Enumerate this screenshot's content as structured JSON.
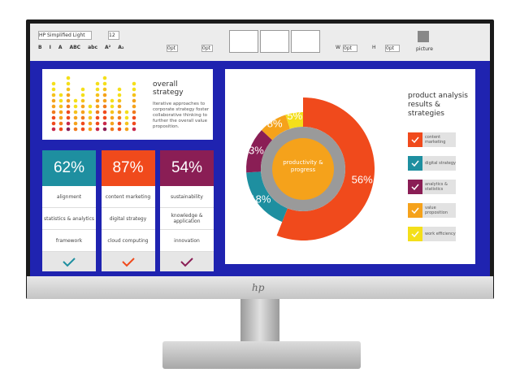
{
  "toolbar": {
    "font": "HP Simplified Light",
    "size": "12",
    "buttons": [
      "B",
      "I",
      "A",
      "ABC",
      "abc",
      "A²",
      "A₂"
    ],
    "spacing": [
      "0pt",
      "0pt"
    ],
    "dims": [
      "W",
      "0pt",
      "H",
      "0pt"
    ],
    "picture": "picture"
  },
  "strategy": {
    "title": "overall strategy",
    "body": "Iterative approaches to corporate strategy foster collaborative thinking to further the overall value proposition."
  },
  "cards": [
    {
      "label": "62%",
      "items": [
        "alignment",
        "statistics & analytics",
        "framework"
      ]
    },
    {
      "label": "87%",
      "items": [
        "content marketing",
        "digital strategy",
        "cloud computing"
      ]
    },
    {
      "label": "54%",
      "items": [
        "sustainability",
        "knowledge & application",
        "innovation"
      ]
    }
  ],
  "chart_data": {
    "type": "donut",
    "title": "product analysis results & strategies",
    "center_label": "productivity & progress",
    "categories": [
      "content marketing",
      "digital strategy",
      "analytics & statistics",
      "value proposition",
      "work efficiency"
    ],
    "values": [
      56,
      18,
      13,
      8,
      5
    ],
    "value_labels": [
      "56%",
      "18%",
      "13%",
      "8%",
      "5%"
    ],
    "colors": [
      "#f04a1c",
      "#1e8fa0",
      "#8a1e55",
      "#f5a21b",
      "#f4df1a"
    ]
  },
  "logo": "hp"
}
